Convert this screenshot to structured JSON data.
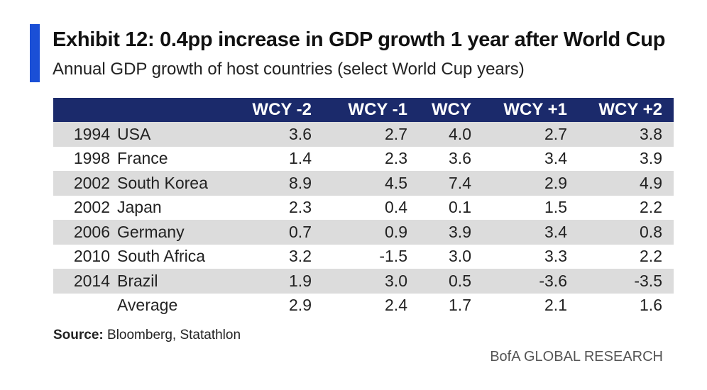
{
  "title": "Exhibit 12: 0.4pp increase in GDP growth 1 year after World Cup",
  "subtitle": "Annual GDP growth of host countries (select World Cup years)",
  "source_label": "Source:",
  "source_text": " Bloomberg, Statathlon",
  "brand": "BofA GLOBAL RESEARCH",
  "colors": {
    "accent": "#1a4fd6",
    "header_bg": "#1b2a6b",
    "stripe": "#dcdcdc"
  },
  "chart_data": {
    "type": "table",
    "columns": [
      "WCY -2",
      "WCY -1",
      "WCY",
      "WCY +1",
      "WCY +2"
    ],
    "rows": [
      {
        "year": "1994",
        "country": "USA",
        "values": [
          "3.6",
          "2.7",
          "4.0",
          "2.7",
          "3.8"
        ]
      },
      {
        "year": "1998",
        "country": "France",
        "values": [
          "1.4",
          "2.3",
          "3.6",
          "3.4",
          "3.9"
        ]
      },
      {
        "year": "2002",
        "country": "South Korea",
        "values": [
          "8.9",
          "4.5",
          "7.4",
          "2.9",
          "4.9"
        ]
      },
      {
        "year": "2002",
        "country": "Japan",
        "values": [
          "2.3",
          "0.4",
          "0.1",
          "1.5",
          "2.2"
        ]
      },
      {
        "year": "2006",
        "country": "Germany",
        "values": [
          "0.7",
          "0.9",
          "3.9",
          "3.4",
          "0.8"
        ]
      },
      {
        "year": "2010",
        "country": "South Africa",
        "values": [
          "3.2",
          "-1.5",
          "3.0",
          "3.3",
          "2.2"
        ]
      },
      {
        "year": "2014",
        "country": "Brazil",
        "values": [
          "1.9",
          "3.0",
          "0.5",
          "-3.6",
          "-3.5"
        ]
      },
      {
        "year": "",
        "country": "Average",
        "values": [
          "2.9",
          "2.4",
          "1.7",
          "2.1",
          "1.6"
        ]
      }
    ]
  }
}
